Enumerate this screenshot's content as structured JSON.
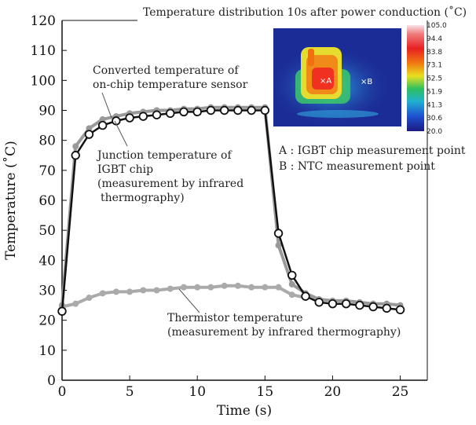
{
  "chart_data": {
    "type": "line",
    "xlabel": "Time (s)",
    "ylabel": "Temperature (˚C)",
    "xlim": [
      0,
      27
    ],
    "ylim": [
      0,
      120
    ],
    "xticks": [
      0,
      5,
      10,
      15,
      20,
      25
    ],
    "yticks": [
      0,
      10,
      20,
      30,
      40,
      50,
      60,
      70,
      80,
      90,
      100,
      110,
      120
    ],
    "grid": false,
    "series": [
      {
        "name": "Converted temperature of on-chip temperature sensor",
        "color": "#999999",
        "marker": "filled-circle",
        "x": [
          0,
          1,
          2,
          3,
          4,
          5,
          6,
          7,
          8,
          9,
          10,
          11,
          12,
          13,
          14,
          15,
          16,
          17,
          18,
          19,
          20,
          21,
          22,
          23,
          24,
          25
        ],
        "y": [
          25,
          78,
          84,
          87,
          88,
          89,
          89.5,
          90,
          90,
          90.5,
          90.5,
          91,
          91,
          91,
          91,
          91,
          45,
          32,
          29,
          27,
          26.5,
          26.5,
          26,
          25.5,
          25.5,
          25
        ]
      },
      {
        "name": "Junction temperature of IGBT chip (measurement by infrared thermography)",
        "color": "#111111",
        "marker": "open-circle",
        "x": [
          0,
          1,
          2,
          3,
          4,
          5,
          6,
          7,
          8,
          9,
          10,
          11,
          12,
          13,
          14,
          15,
          16,
          17,
          18,
          19,
          20,
          21,
          22,
          23,
          24,
          25
        ],
        "y": [
          23,
          75,
          82,
          85,
          86.5,
          87.5,
          88,
          88.5,
          89,
          89.5,
          89.5,
          90,
          90,
          90,
          90,
          90,
          49,
          35,
          28,
          26,
          25.5,
          25.5,
          25,
          24.5,
          24,
          23.5
        ]
      },
      {
        "name": "Thermistor temperature (measurement by infrared thermography)",
        "color": "#aaaaaa",
        "marker": "filled-circle",
        "x": [
          0,
          1,
          2,
          3,
          4,
          5,
          6,
          7,
          8,
          9,
          10,
          11,
          12,
          13,
          14,
          15,
          16,
          17,
          18
        ],
        "y": [
          24.5,
          25.5,
          27.5,
          29,
          29.5,
          29.5,
          30,
          30,
          30.5,
          31,
          31,
          31,
          31.5,
          31.5,
          31,
          31,
          31,
          28.5,
          27.5
        ]
      }
    ],
    "annotations": {
      "sensor_label_line1": "Converted temperature of",
      "sensor_label_line2": "on-chip temperature sensor",
      "junction_label_line1": "Junction temperature of",
      "junction_label_line2": "IGBT chip",
      "junction_label_line3": "(measurement by infrared",
      "junction_label_line4": "thermography)",
      "thermistor_label_line1": "Thermistor temperature",
      "thermistor_label_line2": "(measurement by infrared thermography)"
    },
    "inset": {
      "title": "Temperature distribution 10s after power conduction (˚C)",
      "scale_ticks": [
        "105.0",
        "94.4",
        "83.8",
        "73.1",
        "62.5",
        "51.9",
        "41.3",
        "30.6",
        "20.0"
      ],
      "point_a_label": "×A",
      "point_b_label": "×B",
      "legend_a": "A : IGBT chip measurement point",
      "legend_b": "B : NTC measurement point"
    }
  }
}
